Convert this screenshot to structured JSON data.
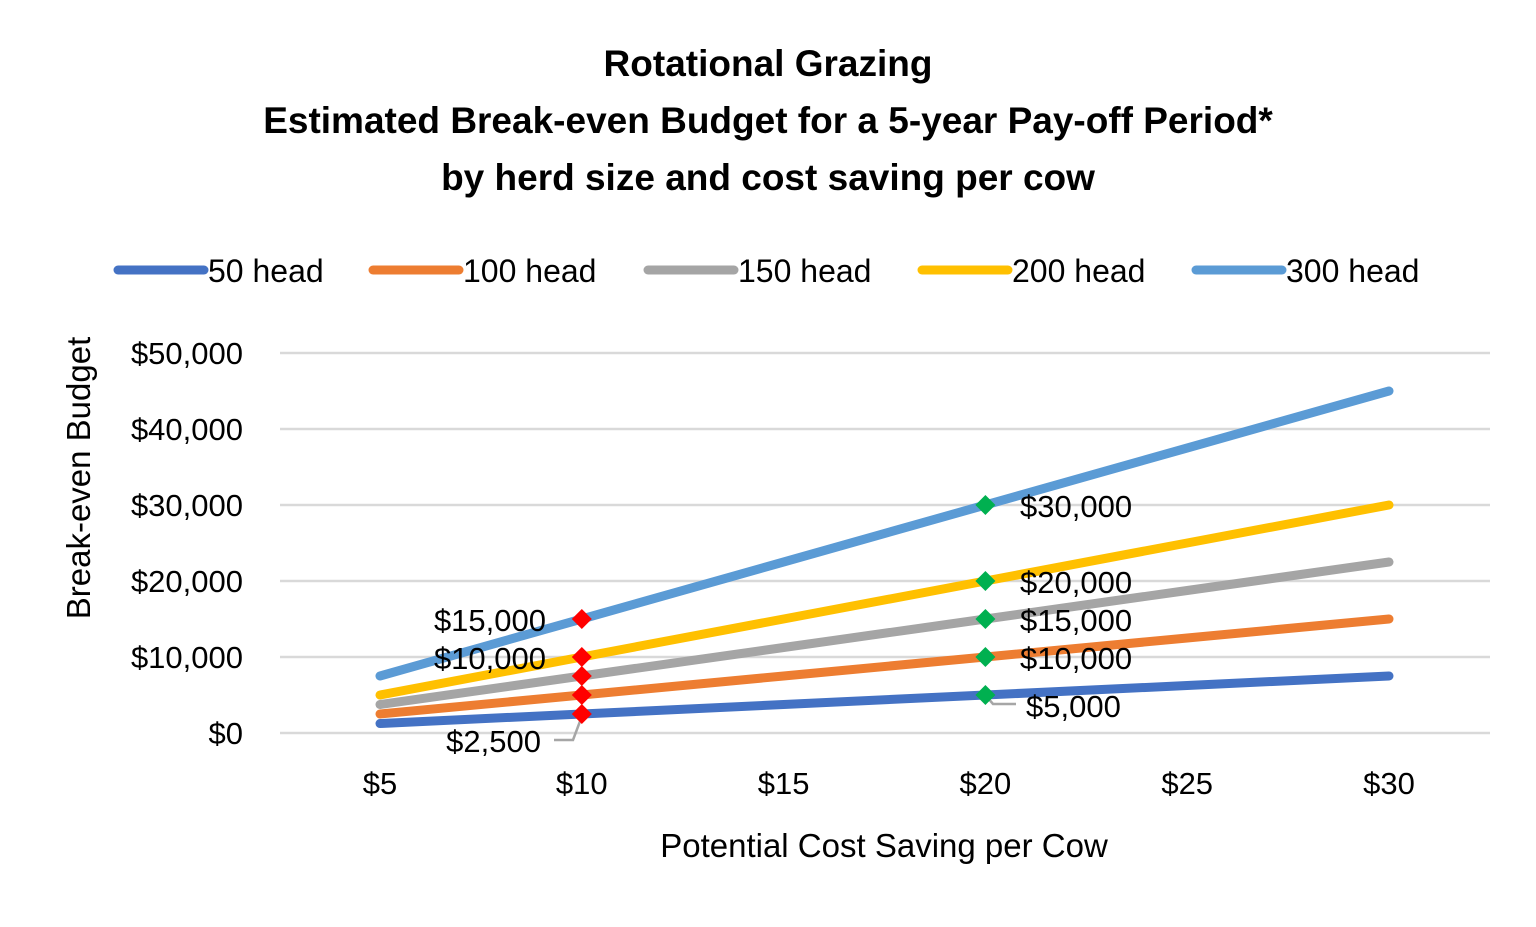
{
  "chart_data": {
    "type": "line",
    "title": [
      "Rotational Grazing",
      "Estimated Break-even Budget for a 5-year Pay-off Period*",
      "by herd size and cost saving per cow"
    ],
    "xlabel": "Potential Cost Saving per Cow",
    "ylabel": "Break-even Budget",
    "x": [
      5,
      10,
      15,
      20,
      25,
      30
    ],
    "x_tick_labels": [
      "$5",
      "$10",
      "$15",
      "$20",
      "$25",
      "$30"
    ],
    "ylim": [
      0,
      50000
    ],
    "y_ticks": [
      0,
      10000,
      20000,
      30000,
      40000,
      50000
    ],
    "y_tick_labels": [
      "$0",
      "$10,000",
      "$20,000",
      "$30,000",
      "$40,000",
      "$50,000"
    ],
    "grid": true,
    "legend_position": "top",
    "series": [
      {
        "name": "50 head",
        "color": "#4472C4",
        "values": [
          1250,
          2500,
          3750,
          5000,
          6250,
          7500
        ]
      },
      {
        "name": "100 head",
        "color": "#ED7D31",
        "values": [
          2500,
          5000,
          7500,
          10000,
          12500,
          15000
        ]
      },
      {
        "name": "150 head",
        "color": "#A5A5A5",
        "values": [
          3750,
          7500,
          11250,
          15000,
          18750,
          22500
        ]
      },
      {
        "name": "200 head",
        "color": "#FFC000",
        "values": [
          5000,
          10000,
          15000,
          20000,
          25000,
          30000
        ]
      },
      {
        "name": "300 head",
        "color": "#5B9BD5",
        "values": [
          7500,
          15000,
          22500,
          30000,
          37500,
          45000
        ]
      }
    ],
    "markers": [
      {
        "x": 10,
        "y": 2500,
        "color": "#FF0000",
        "shape": "diamond"
      },
      {
        "x": 10,
        "y": 5000,
        "color": "#FF0000",
        "shape": "diamond"
      },
      {
        "x": 10,
        "y": 7500,
        "color": "#FF0000",
        "shape": "diamond"
      },
      {
        "x": 10,
        "y": 10000,
        "color": "#FF0000",
        "shape": "diamond"
      },
      {
        "x": 10,
        "y": 15000,
        "color": "#FF0000",
        "shape": "diamond"
      },
      {
        "x": 20,
        "y": 5000,
        "color": "#00B050",
        "shape": "diamond"
      },
      {
        "x": 20,
        "y": 10000,
        "color": "#00B050",
        "shape": "diamond"
      },
      {
        "x": 20,
        "y": 15000,
        "color": "#00B050",
        "shape": "diamond"
      },
      {
        "x": 20,
        "y": 20000,
        "color": "#00B050",
        "shape": "diamond"
      },
      {
        "x": 20,
        "y": 30000,
        "color": "#00B050",
        "shape": "diamond"
      }
    ],
    "annotations": [
      {
        "x": 10,
        "y": 15000,
        "label": "$15,000"
      },
      {
        "x": 10,
        "y": 10000,
        "label": "$10,000"
      },
      {
        "x": 10,
        "y": 2500,
        "label": "$2,500"
      },
      {
        "x": 20,
        "y": 30000,
        "label": "$30,000"
      },
      {
        "x": 20,
        "y": 20000,
        "label": "$20,000"
      },
      {
        "x": 20,
        "y": 15000,
        "label": "$15,000"
      },
      {
        "x": 20,
        "y": 10000,
        "label": "$10,000"
      },
      {
        "x": 20,
        "y": 5000,
        "label": "$5,000"
      }
    ]
  }
}
